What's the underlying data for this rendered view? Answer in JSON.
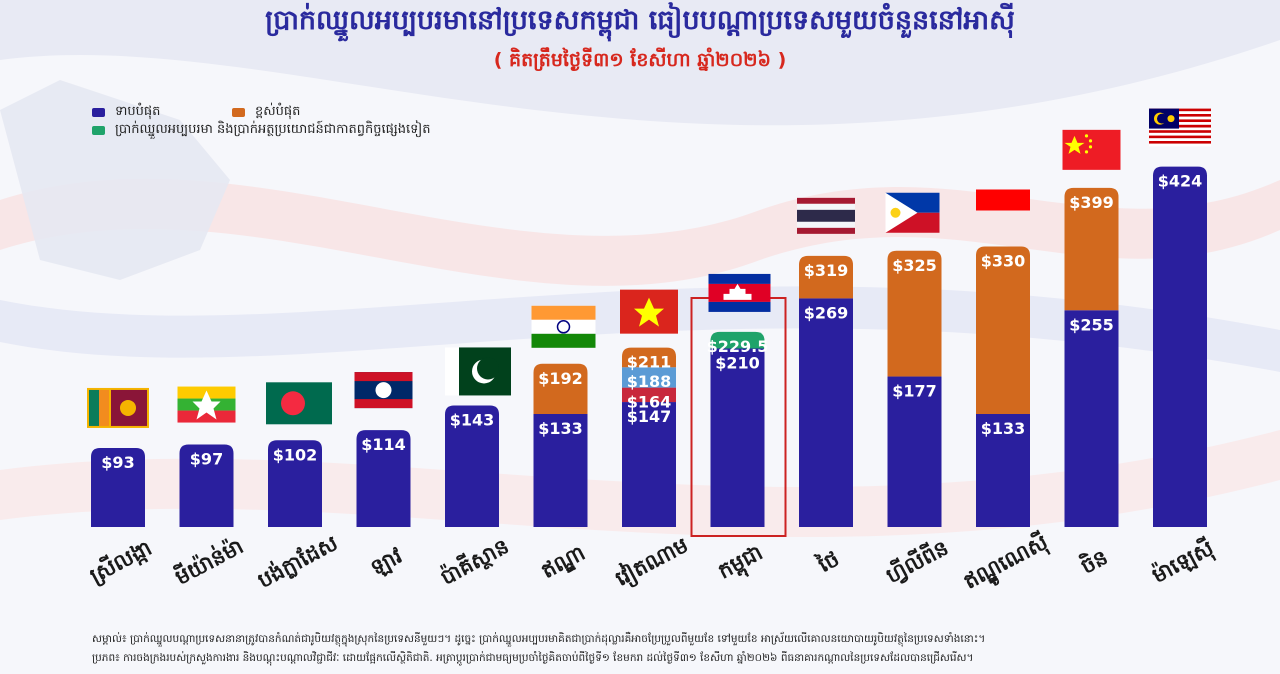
{
  "title": "ប្រាក់ឈ្នួលអប្បបរមានៅប្រទេសកម្ពុជា ធៀបបណ្ដាប្រទេសមួយចំនួននៅអាស៊ី",
  "subtitle": "( គិតត្រឹមថ្ងៃទី៣១ ខែសីហា ឆ្នាំ២០២៦ )",
  "legend": {
    "low": "ទាបបំផុត",
    "high": "ខ្ពស់បំផុត",
    "benefit": "ប្រាក់ឈ្នួលអប្បបរមា និងប្រាក់អត្ថប្រយោជន៍ជាកាតព្វកិច្ចផ្សេងទៀត"
  },
  "colors": {
    "low": "#2a1f9e",
    "high": "#d2691e",
    "benefit": "#1fa36a",
    "vn2": "#5b9bd5",
    "vn3": "#c8283c",
    "title": "#2a2a9e",
    "highlight": "#cc2222"
  },
  "chart_data": {
    "type": "bar",
    "categories": [
      "ស្រីលង្កា",
      "មីយ៉ាន់ម៉ា",
      "បង់ក្លាដែស",
      "ឡាវ",
      "ប៉ាគីស្ថាន",
      "ឥណ្ឌា",
      "វៀតណាម",
      "កម្ពុជា",
      "ថៃ",
      "ហ្វីលីពីន",
      "ឥណ្ឌូណេស៊ី",
      "ចិន",
      "ម៉ាឡេស៊ី"
    ],
    "flags": [
      "sri-lanka",
      "myanmar",
      "bangladesh",
      "laos",
      "pakistan",
      "india",
      "vietnam",
      "cambodia",
      "thailand",
      "philippines",
      "indonesia",
      "china",
      "malaysia"
    ],
    "highlight_index": 7,
    "ylim": [
      0,
      440
    ],
    "points": [
      {
        "segments": [
          {
            "value": 93,
            "label": "$93",
            "kind": "low"
          }
        ]
      },
      {
        "segments": [
          {
            "value": 97,
            "label": "$97",
            "kind": "low"
          }
        ]
      },
      {
        "segments": [
          {
            "value": 102,
            "label": "$102",
            "kind": "low"
          }
        ]
      },
      {
        "segments": [
          {
            "value": 114,
            "label": "$114",
            "kind": "low"
          }
        ]
      },
      {
        "segments": [
          {
            "value": 143,
            "label": "$143",
            "kind": "low"
          }
        ]
      },
      {
        "segments": [
          {
            "value": 133,
            "label": "$133",
            "kind": "low"
          },
          {
            "value": 192,
            "label": "$192",
            "kind": "high"
          }
        ]
      },
      {
        "segments": [
          {
            "value": 147,
            "label": "$147",
            "kind": "low"
          },
          {
            "value": 164,
            "label": "$164",
            "kind": "vn3"
          },
          {
            "value": 188,
            "label": "$188",
            "kind": "vn2"
          },
          {
            "value": 211,
            "label": "$211",
            "kind": "high"
          }
        ]
      },
      {
        "segments": [
          {
            "value": 210,
            "label": "$210",
            "kind": "low"
          },
          {
            "value": 229.5,
            "label": "$229.5",
            "kind": "benefit"
          }
        ]
      },
      {
        "segments": [
          {
            "value": 269,
            "label": "$269",
            "kind": "low"
          },
          {
            "value": 319,
            "label": "$319",
            "kind": "high"
          }
        ]
      },
      {
        "segments": [
          {
            "value": 177,
            "label": "$177",
            "kind": "low"
          },
          {
            "value": 325,
            "label": "$325",
            "kind": "high"
          }
        ]
      },
      {
        "segments": [
          {
            "value": 133,
            "label": "$133",
            "kind": "low"
          },
          {
            "value": 330,
            "label": "$330",
            "kind": "high"
          }
        ]
      },
      {
        "segments": [
          {
            "value": 255,
            "label": "$255",
            "kind": "low"
          },
          {
            "value": 399,
            "label": "$399",
            "kind": "high"
          }
        ]
      },
      {
        "segments": [
          {
            "value": 424,
            "label": "$424",
            "kind": "low"
          }
        ]
      }
    ]
  },
  "footnotes": [
    "សម្គាល់៖ ប្រាក់ឈ្នួលបណ្ដាប្រទេសនានាត្រូវបានកំណត់ជារូបិយវត្ថុក្នុងស្រុកនៃប្រទេសនីមួយៗ។ ដូច្នេះ ប្រាក់ឈ្នួលអប្បបរមាគិតជាប្រាក់ដុល្លារគឺអាចប្រែប្រួលពីមួយខែ ទៅមួយខែ អាស្រ័យលើគោលនយោបាយរូបិយវត្ថុនៃប្រទេសទាំងនោះ។",
    "ប្រភព៖ ការចងក្រងរបស់ក្រសួងការងារ និងបណ្ដុះបណ្ដាលវិជ្ជាជីវៈ ដោយផ្អែកលើស្ថិតិជាតិ. អត្រាប្ដូរប្រាក់ជាមធ្យមប្រចាំថ្ងៃគិតចាប់ពីថ្ងៃទី១ ខែមករា ដល់ថ្ងៃទី៣១ ខែសីហា ឆ្នាំ២០២៦ ពីធនាគារកណ្ដាលនៃប្រទេសដែលបានជ្រើសរើស។"
  ]
}
